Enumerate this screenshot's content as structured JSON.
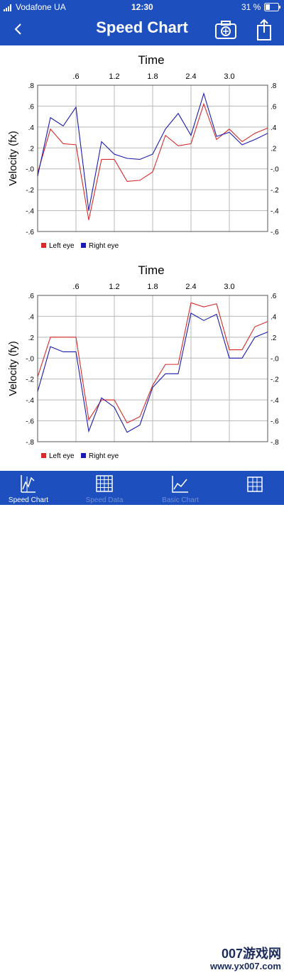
{
  "status": {
    "carrier": "Vodafone UA",
    "time": "12:30",
    "battery": "31 %"
  },
  "nav": {
    "title": "Speed Chart"
  },
  "charts": [
    {
      "title": "Time",
      "ylabel": "Velocity (fx)",
      "xticks": [
        ".6",
        "1.2",
        "1.8",
        "2.4",
        "3.0"
      ],
      "yticks": [
        ".8",
        ".6",
        ".4",
        ".2",
        "-.0",
        "-.2",
        "-.4",
        "-.6"
      ],
      "legend": [
        {
          "label": "Left eye",
          "color": "#d62a2a"
        },
        {
          "label": "Right eye",
          "color": "#1a1ab0"
        }
      ]
    },
    {
      "title": "Time",
      "ylabel": "Velocity (fy)",
      "xticks": [
        ".6",
        "1.2",
        "1.8",
        "2.4",
        "3.0"
      ],
      "yticks": [
        ".6",
        ".4",
        ".2",
        "-.0",
        "-.2",
        "-.4",
        "-.6",
        "-.8"
      ],
      "legend": [
        {
          "label": "Left eye",
          "color": "#d62a2a"
        },
        {
          "label": "Right eye",
          "color": "#1a1ab0"
        }
      ]
    }
  ],
  "chart_data": [
    {
      "type": "line",
      "title": "Time",
      "xlabel": "",
      "ylabel": "Velocity (fx)",
      "xlim": [
        0,
        3.6
      ],
      "ylim": [
        -0.6,
        0.8
      ],
      "x": [
        0.0,
        0.2,
        0.4,
        0.6,
        0.8,
        1.0,
        1.2,
        1.4,
        1.6,
        1.8,
        2.0,
        2.2,
        2.4,
        2.6,
        2.8,
        3.0,
        3.2,
        3.4,
        3.6
      ],
      "series": [
        {
          "name": "Left eye",
          "color": "#d62a2a",
          "values": [
            -0.04,
            0.38,
            0.24,
            0.23,
            -0.49,
            0.09,
            0.09,
            -0.12,
            -0.11,
            -0.03,
            0.32,
            0.22,
            0.24,
            0.62,
            0.28,
            0.38,
            0.26,
            0.34,
            0.39
          ]
        },
        {
          "name": "Right eye",
          "color": "#1a1ab0",
          "values": [
            -0.07,
            0.49,
            0.41,
            0.59,
            -0.4,
            0.26,
            0.14,
            0.1,
            0.09,
            0.14,
            0.38,
            0.53,
            0.32,
            0.72,
            0.31,
            0.35,
            0.23,
            0.28,
            0.34
          ]
        }
      ]
    },
    {
      "type": "line",
      "title": "Time",
      "xlabel": "",
      "ylabel": "Velocity (fy)",
      "xlim": [
        0,
        3.6
      ],
      "ylim": [
        -0.8,
        0.6
      ],
      "x": [
        0.0,
        0.2,
        0.4,
        0.6,
        0.8,
        1.0,
        1.2,
        1.4,
        1.6,
        1.8,
        2.0,
        2.2,
        2.4,
        2.6,
        2.8,
        3.0,
        3.2,
        3.4,
        3.6
      ],
      "series": [
        {
          "name": "Left eye",
          "color": "#d62a2a",
          "values": [
            -0.18,
            0.2,
            0.2,
            0.2,
            -0.59,
            -0.4,
            -0.4,
            -0.62,
            -0.56,
            -0.26,
            -0.06,
            -0.06,
            0.53,
            0.49,
            0.52,
            0.08,
            0.08,
            0.3,
            0.35
          ]
        },
        {
          "name": "Right eye",
          "color": "#1a1ab0",
          "values": [
            -0.32,
            0.11,
            0.06,
            0.06,
            -0.7,
            -0.38,
            -0.47,
            -0.71,
            -0.64,
            -0.28,
            -0.15,
            -0.15,
            0.43,
            0.36,
            0.42,
            0.0,
            0.0,
            0.2,
            0.25
          ]
        }
      ]
    }
  ],
  "tabs": [
    {
      "label": "Speed Chart",
      "icon": "line-chart-icon",
      "active": true
    },
    {
      "label": "Speed Data",
      "icon": "grid-icon",
      "active": false
    },
    {
      "label": "Basic Chart",
      "icon": "area-chart-icon",
      "active": false
    },
    {
      "label": "",
      "icon": "grid-icon",
      "active": false
    }
  ],
  "watermark": {
    "top": "007游戏网",
    "bottom": "www.yx007.com"
  }
}
